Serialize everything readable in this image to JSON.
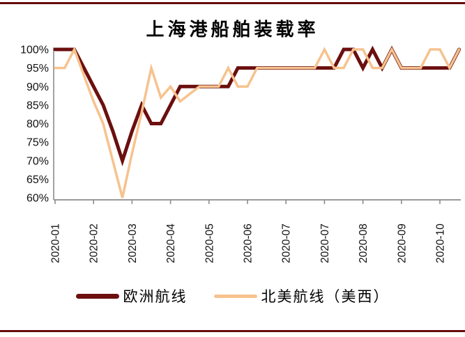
{
  "page": {
    "top_border_color": "#650B0B",
    "bottom_border_color": "#650B0B",
    "background": "#FFFFFF"
  },
  "chart_data": {
    "type": "line",
    "title": "上海港船舶装载率",
    "xlabel": "",
    "ylabel": "",
    "y_min": 60,
    "y_max": 100,
    "y_tick_step": 5,
    "y_tick_labels": [
      "100%",
      "95%",
      "90%",
      "85%",
      "80%",
      "75%",
      "70%",
      "65%",
      "60%"
    ],
    "y_tick_values": [
      100,
      95,
      90,
      85,
      80,
      75,
      70,
      65,
      60
    ],
    "grid": false,
    "legend_position": "bottom",
    "axis_color": "#8C8C8C",
    "x_tick_positions": [
      1,
      5,
      9,
      13,
      17,
      21,
      25,
      29,
      33,
      37,
      41
    ],
    "x_tick_labels": [
      "2020-01",
      "2020-02",
      "2020-03",
      "2020-04",
      "2020-05",
      "2020-06",
      "2020-07",
      "2020-07",
      "2020-08",
      "2020-09",
      "2020-10"
    ],
    "x_unit": "week",
    "n_points": 43,
    "series": [
      {
        "name": "欧洲航线",
        "color": "#6B0F0F",
        "line_width": 5,
        "values": [
          100,
          100,
          100,
          95,
          90,
          85,
          78,
          70,
          78,
          85,
          80,
          80,
          85,
          90,
          90,
          90,
          90,
          90,
          90,
          95,
          95,
          95,
          95,
          95,
          95,
          95,
          95,
          95,
          95,
          95,
          100,
          100,
          95,
          100,
          95,
          100,
          95,
          95,
          95,
          95,
          95,
          95,
          100
        ]
      },
      {
        "name": "北美航线（美西）",
        "color": "#F7C28E",
        "line_width": 3.5,
        "values": [
          95,
          95,
          100,
          93,
          86,
          80,
          70,
          60,
          72,
          83,
          95,
          87,
          90,
          86,
          88,
          90,
          90,
          90,
          95,
          90,
          90,
          95,
          95,
          95,
          95,
          95,
          95,
          95,
          100,
          95,
          95,
          100,
          100,
          95,
          95,
          100,
          95,
          95,
          95,
          100,
          100,
          95,
          100
        ]
      }
    ]
  }
}
